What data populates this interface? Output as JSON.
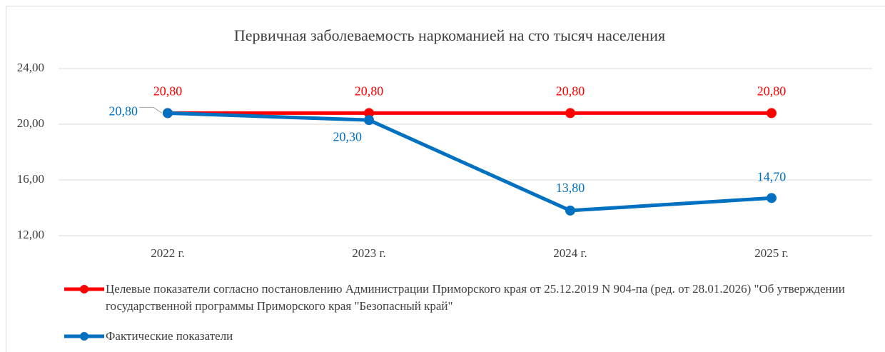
{
  "chart_data": {
    "type": "line",
    "title": "Первичная заболеваемость наркоманией на сто тысяч населения",
    "categories": [
      "2022 г.",
      "2023 г.",
      "2024 г.",
      "2025 г."
    ],
    "series": [
      {
        "name": "Целевые показатели согласно постановлению Администрации Приморского края от 25.12.2019 N 904-па (ред. от 28.01.2026) \"Об утверждении государственной программы Приморского края \"Безопасный край\"",
        "color": "#ff0000",
        "values": [
          20.8,
          20.8,
          20.8,
          20.8
        ],
        "value_labels": [
          "20,80",
          "20,80",
          "20,80",
          "20,80"
        ]
      },
      {
        "name": "Фактические показатели",
        "color": "#0070c0",
        "values": [
          20.8,
          20.3,
          13.8,
          14.7
        ],
        "value_labels": [
          "20,80",
          "20,30",
          "13,80",
          "14,70"
        ]
      }
    ],
    "ylim": [
      12,
      24
    ],
    "yticks": [
      {
        "value": 12,
        "label": "12,00"
      },
      {
        "value": 16,
        "label": "16,00"
      },
      {
        "value": 20,
        "label": "20,00"
      },
      {
        "value": 24,
        "label": "24,00"
      }
    ],
    "grid": true,
    "legend": "bottom"
  }
}
